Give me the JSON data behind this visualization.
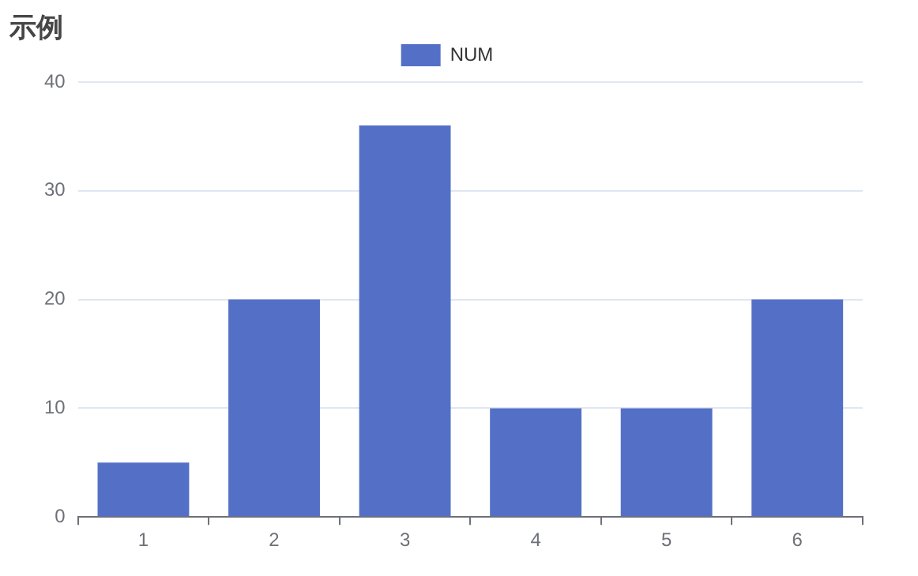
{
  "chart_data": {
    "type": "bar",
    "title": "示例",
    "categories": [
      "1",
      "2",
      "3",
      "4",
      "5",
      "6"
    ],
    "series": [
      {
        "name": "NUM",
        "color": "#5470c6",
        "values": [
          5,
          20,
          36,
          10,
          10,
          20
        ]
      }
    ],
    "ylim": [
      0,
      40
    ],
    "yticks": [
      0,
      10,
      20,
      30,
      40
    ],
    "grid": "y",
    "legend": "top"
  }
}
